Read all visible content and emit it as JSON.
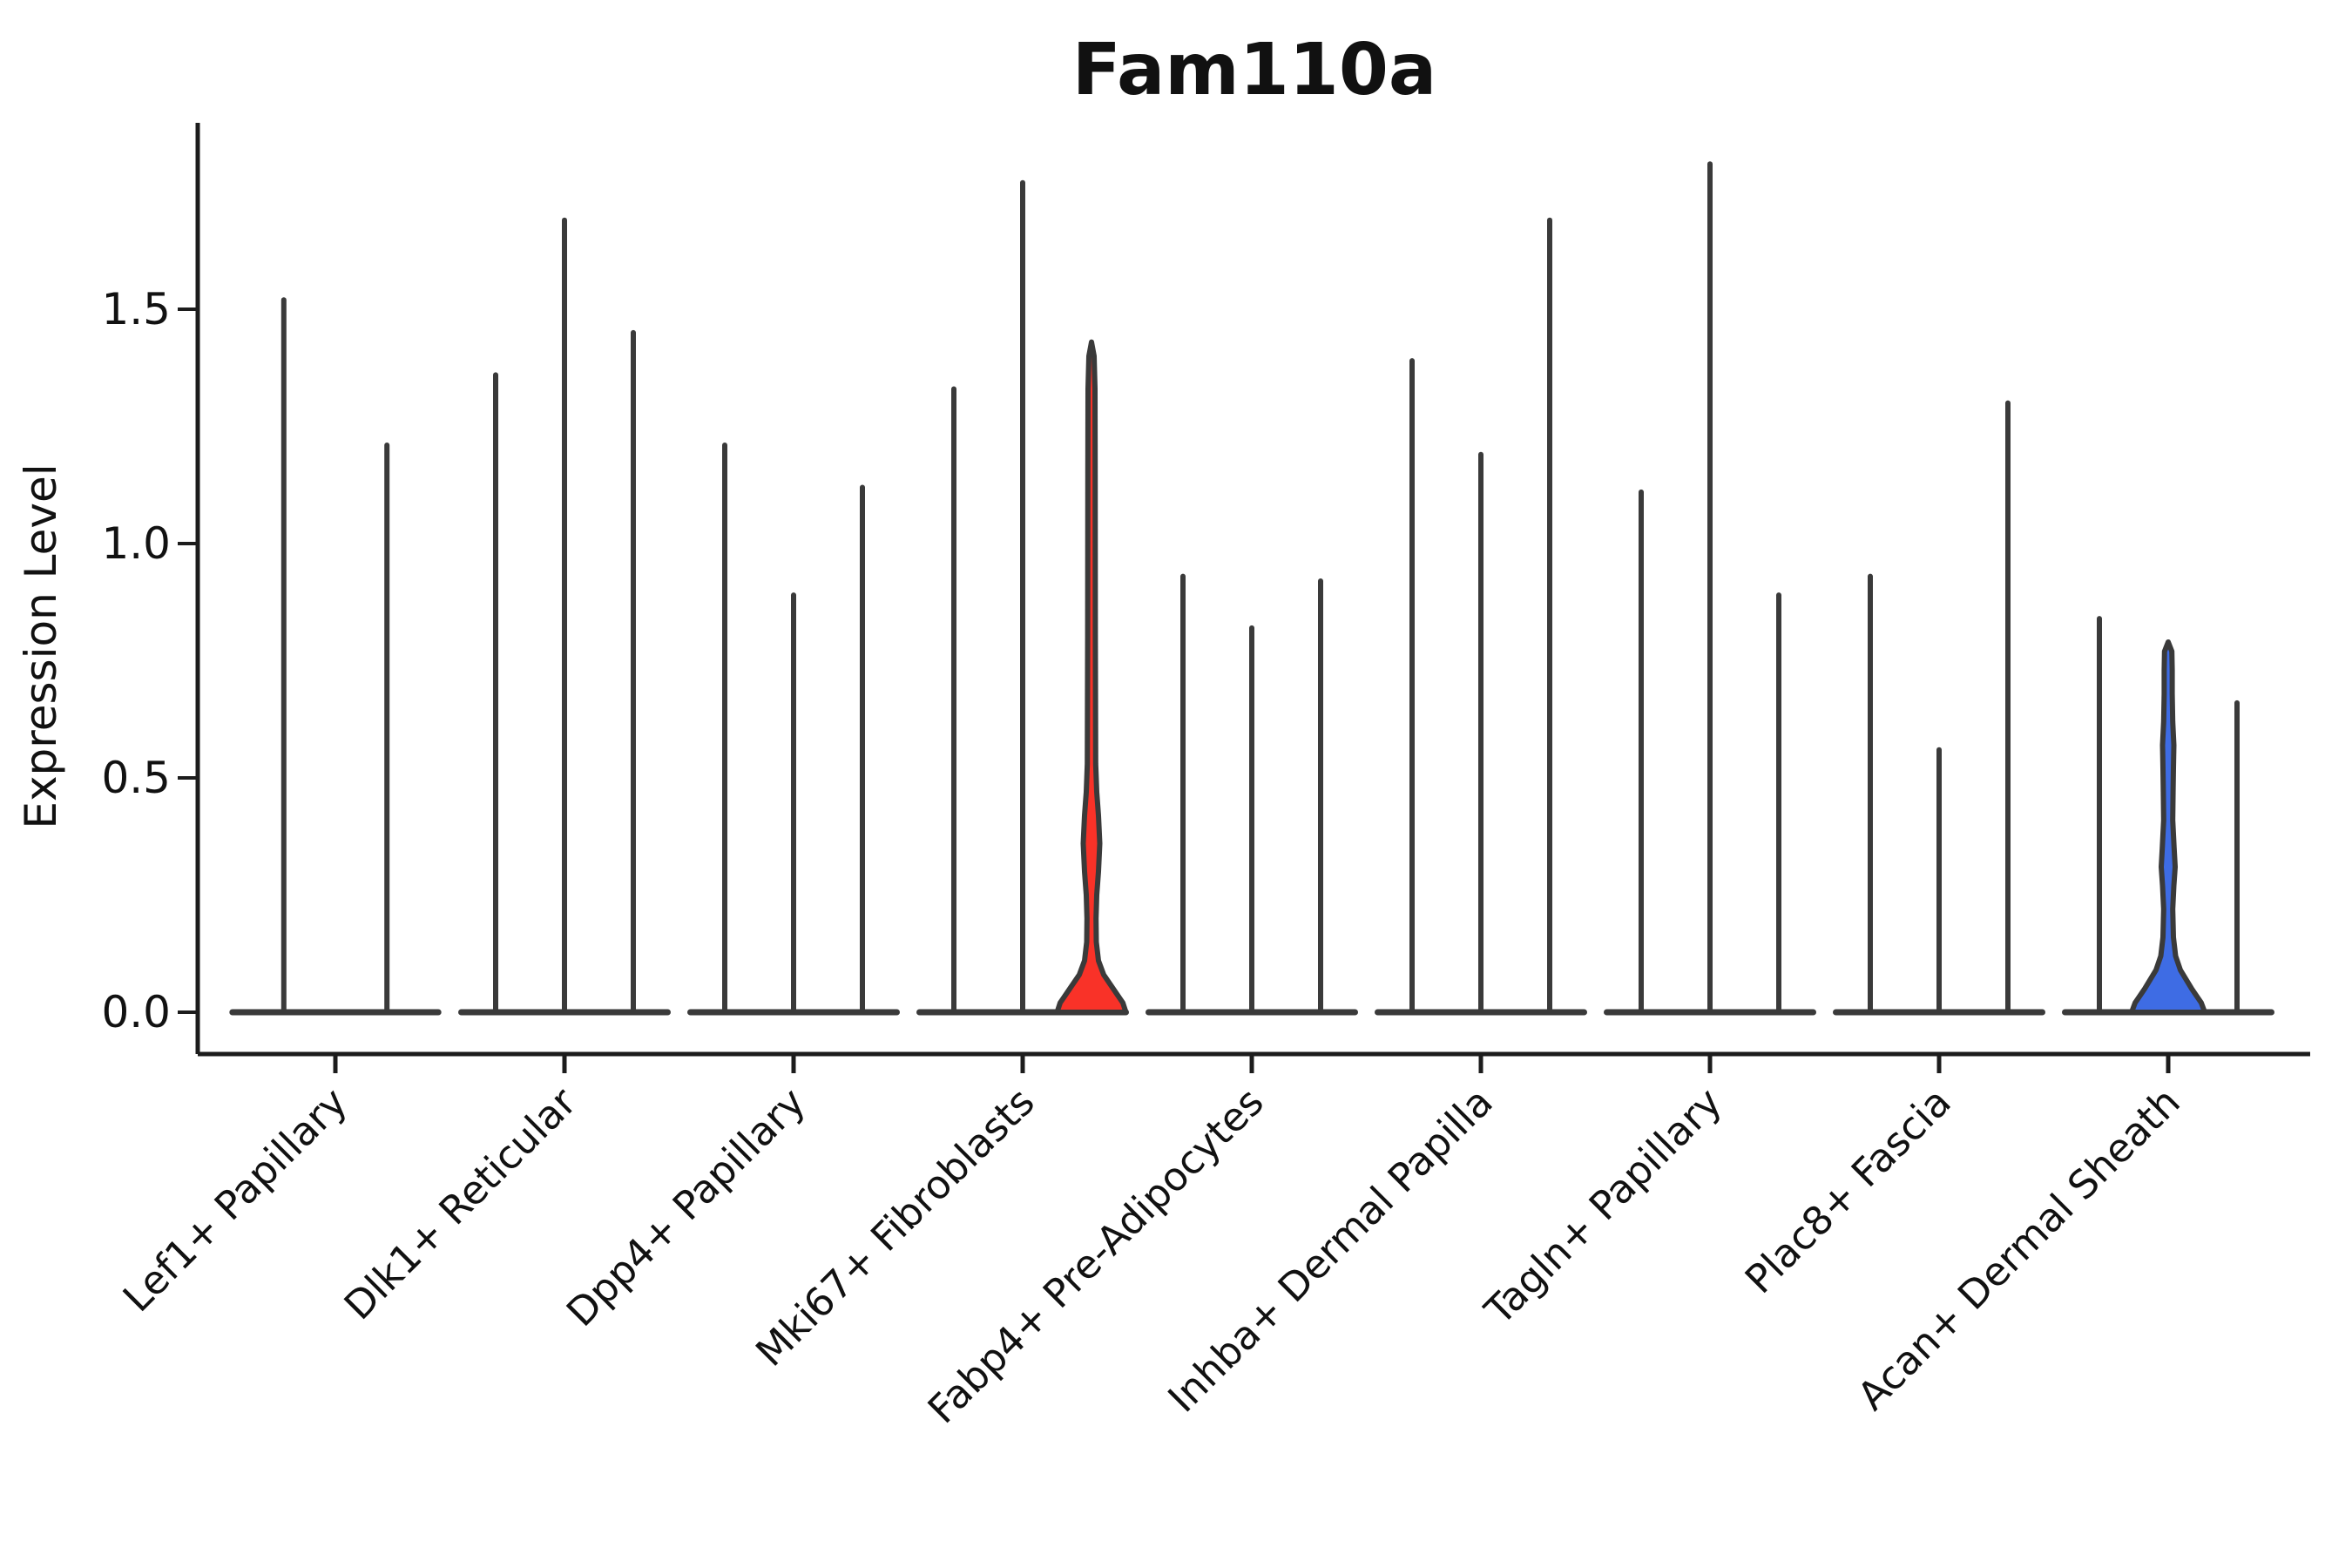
{
  "chart_data": {
    "type": "violin",
    "title": "Fam110a",
    "ylabel": "Expression Level",
    "xlabel": "",
    "grid": false,
    "legend": "none",
    "yticks": [
      {
        "label": "0.0",
        "value": 0.0
      },
      {
        "label": "0.5",
        "value": 0.5
      },
      {
        "label": "1.0",
        "value": 1.0
      },
      {
        "label": "1.5",
        "value": 1.5
      }
    ],
    "ylim": [
      -0.09,
      1.9
    ],
    "colors": {
      "axis": "#1c1c1c",
      "violin_line": "#3a3a3a",
      "red_fill": "#f93228",
      "blue_fill": "#3e6ce4",
      "text": "#111111"
    },
    "groups": [
      {
        "label": "Lef1+ Papillary",
        "violins": [
          {
            "max": 1.52
          },
          {
            "max": 1.21
          }
        ]
      },
      {
        "label": "Dlk1+ Reticular",
        "violins": [
          {
            "max": 1.36
          },
          {
            "max": 1.69
          },
          {
            "max": 1.45
          }
        ]
      },
      {
        "label": "Dpp4+ Papillary",
        "violins": [
          {
            "max": 1.21
          },
          {
            "max": 0.89
          },
          {
            "max": 1.12
          }
        ]
      },
      {
        "label": "Mki67+ Fibroblasts",
        "violins": [
          {
            "max": 1.33
          },
          {
            "max": 1.77
          },
          {
            "max": 1.43,
            "fill": "#f93228",
            "profile": "red"
          }
        ]
      },
      {
        "label": "Fabp4+ Pre-Adipocytes",
        "violins": [
          {
            "max": 0.93
          },
          {
            "max": 0.82
          },
          {
            "max": 0.92
          }
        ]
      },
      {
        "label": "Inhba+ Dermal Papilla",
        "violins": [
          {
            "max": 1.39
          },
          {
            "max": 1.19
          },
          {
            "max": 1.69
          }
        ]
      },
      {
        "label": "Tagln+ Papillary",
        "violins": [
          {
            "max": 1.11
          },
          {
            "max": 1.81
          },
          {
            "max": 0.89
          }
        ]
      },
      {
        "label": "Plac8+ Fascia",
        "violins": [
          {
            "max": 0.93
          },
          {
            "max": 0.56
          },
          {
            "max": 1.3
          }
        ]
      },
      {
        "label": "Acan+ Dermal Sheath",
        "violins": [
          {
            "max": 0.84
          },
          {
            "max": 0.79,
            "fill": "#3e6ce4",
            "profile": "blue"
          },
          {
            "max": 0.66
          }
        ]
      }
    ],
    "profiles": {
      "red": [
        [
          0,
          39.5
        ],
        [
          0.02,
          36
        ],
        [
          0.05,
          25
        ],
        [
          0.08,
          14
        ],
        [
          0.11,
          8
        ],
        [
          0.15,
          5.5
        ],
        [
          0.2,
          5.2
        ],
        [
          0.25,
          6
        ],
        [
          0.3,
          8
        ],
        [
          0.36,
          9.5
        ],
        [
          0.42,
          8
        ],
        [
          0.47,
          6
        ],
        [
          0.53,
          4.8
        ],
        [
          0.8,
          4.4
        ],
        [
          1.15,
          4.2
        ],
        [
          1.33,
          4.0
        ],
        [
          1.4,
          3.0
        ],
        [
          1.43,
          0
        ]
      ],
      "blue": [
        [
          0,
          42
        ],
        [
          0.02,
          38
        ],
        [
          0.05,
          27
        ],
        [
          0.09,
          14
        ],
        [
          0.12,
          8.5
        ],
        [
          0.16,
          6
        ],
        [
          0.22,
          5.2
        ],
        [
          0.27,
          6.5
        ],
        [
          0.31,
          8
        ],
        [
          0.35,
          6.8
        ],
        [
          0.41,
          5.2
        ],
        [
          0.47,
          5.6
        ],
        [
          0.52,
          6
        ],
        [
          0.57,
          6.5
        ],
        [
          0.62,
          5.2
        ],
        [
          0.68,
          4.6
        ],
        [
          0.73,
          4.6
        ],
        [
          0.77,
          4.2
        ],
        [
          0.79,
          0
        ]
      ]
    }
  }
}
